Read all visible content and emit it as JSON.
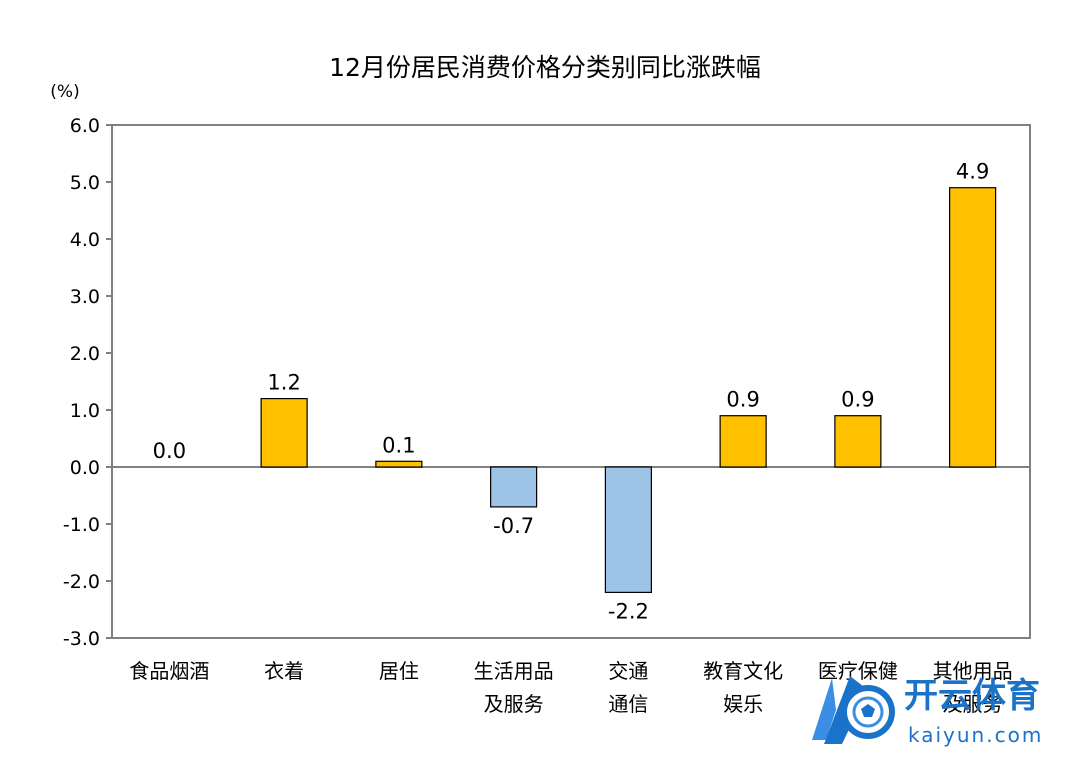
{
  "chart_data": {
    "type": "bar",
    "title": "12月份居民消费价格分类别同比涨跌幅",
    "ylabel": "(%)",
    "xlabel": "",
    "ylim": [
      -3.0,
      6.0
    ],
    "yticks": [
      6.0,
      5.0,
      4.0,
      3.0,
      2.0,
      1.0,
      0.0,
      -1.0,
      -2.0,
      -3.0
    ],
    "ytick_labels": [
      "6.0",
      "5.0",
      "4.0",
      "3.0",
      "2.0",
      "1.0",
      "0.0",
      "-1.0",
      "-2.0",
      "-3.0"
    ],
    "grid": false,
    "legend": false,
    "categories": [
      [
        "食品烟酒"
      ],
      [
        "衣着"
      ],
      [
        "居住"
      ],
      [
        "生活用品",
        "及服务"
      ],
      [
        "交通",
        "通信"
      ],
      [
        "教育文化",
        "娱乐"
      ],
      [
        "医疗保健"
      ],
      [
        "其他用品",
        "及服务"
      ]
    ],
    "values": [
      0.0,
      1.2,
      0.1,
      -0.7,
      -2.2,
      0.9,
      0.9,
      4.9
    ],
    "value_labels": [
      "0.0",
      "1.2",
      "0.1",
      "-0.7",
      "-2.2",
      "0.9",
      "0.9",
      "4.9"
    ],
    "colors": {
      "positive": "#FFC000",
      "negative": "#9DC3E6",
      "bar_outline": "#000000",
      "axis": "#808080",
      "text": "#000000"
    }
  },
  "watermark": {
    "brand": "开云体育",
    "domain": "kaiyun.com",
    "color": "#1a73c8"
  }
}
